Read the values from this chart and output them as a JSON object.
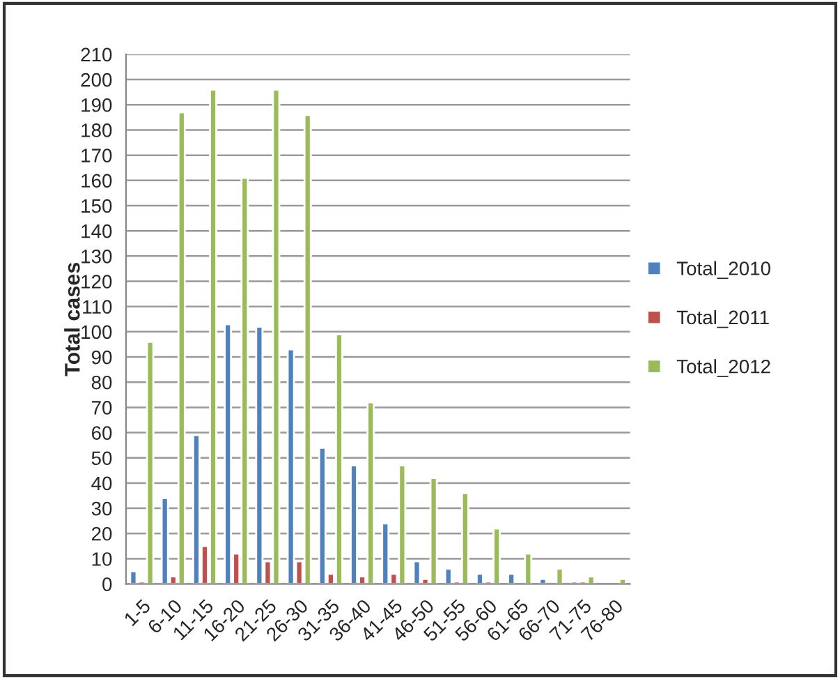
{
  "chart_data": {
    "type": "bar",
    "ylabel": "Total cases",
    "categories": [
      "1-5",
      "6-10",
      "11-15",
      "16-20",
      "21-25",
      "26-30",
      "31-35",
      "36-40",
      "41-45",
      "46-50",
      "51-55",
      "56-60",
      "61-65",
      "66-70",
      "71-75",
      "76-80"
    ],
    "series": [
      {
        "name": "Total_2010",
        "color": "#4f81bd",
        "values": [
          5,
          34,
          59,
          103,
          102,
          93,
          54,
          47,
          24,
          9,
          6,
          4,
          4,
          2,
          1,
          null
        ]
      },
      {
        "name": "Total_2011",
        "color": "#c0504d",
        "values": [
          1,
          3,
          15,
          12,
          9,
          9,
          4,
          3,
          4,
          2,
          1,
          1,
          null,
          null,
          1,
          null
        ]
      },
      {
        "name": "Total_2012",
        "color": "#9bbb59",
        "values": [
          96,
          187,
          196,
          161,
          196,
          186,
          99,
          72,
          47,
          42,
          36,
          22,
          12,
          6,
          3,
          2
        ]
      }
    ],
    "ylim": [
      0,
      210
    ],
    "yticks": [
      0,
      10,
      20,
      30,
      40,
      50,
      60,
      70,
      80,
      90,
      100,
      110,
      120,
      130,
      140,
      150,
      160,
      170,
      180,
      190,
      200,
      210
    ],
    "grid": "y",
    "legend": "right"
  }
}
